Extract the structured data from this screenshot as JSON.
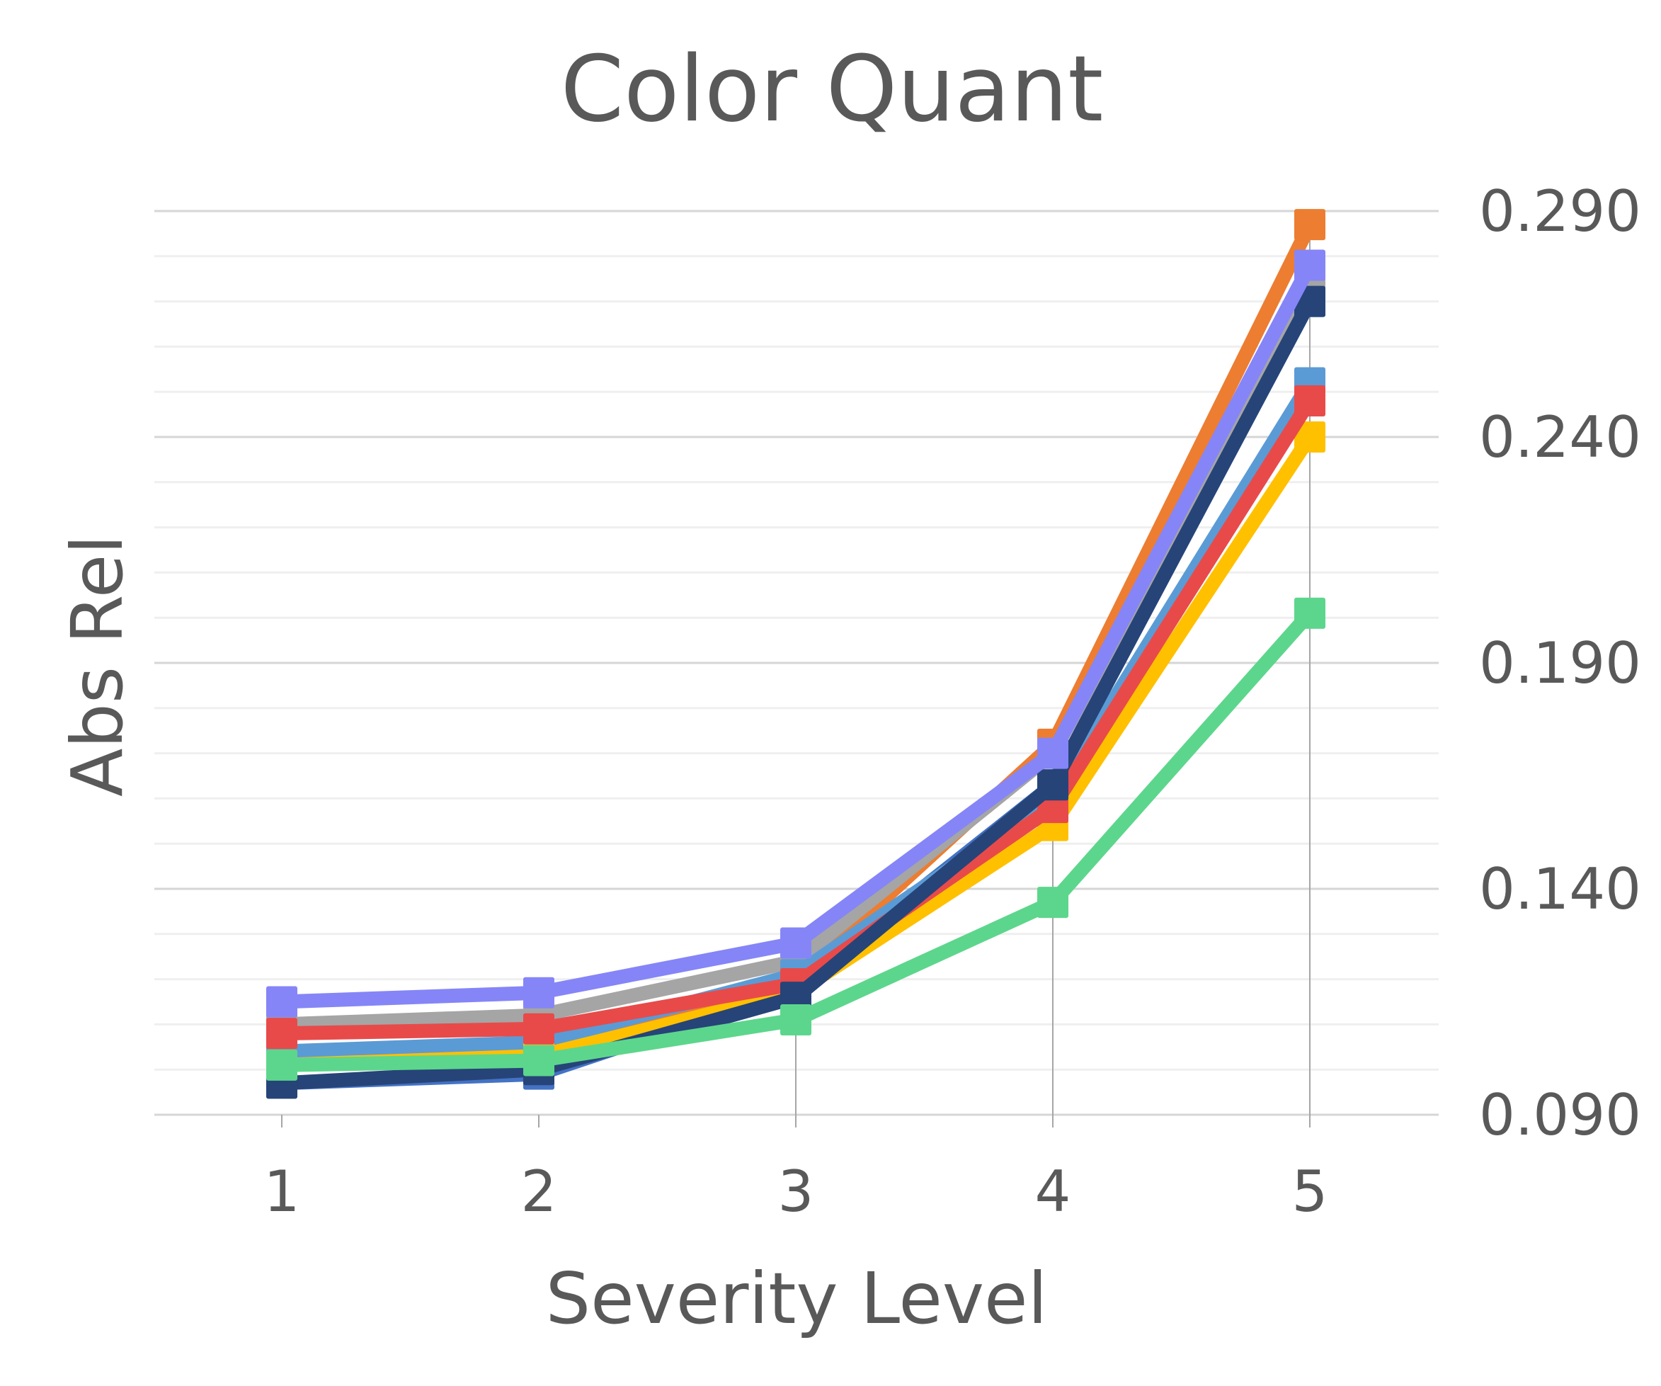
{
  "chart_data": {
    "type": "line",
    "title": "Color Quant",
    "xlabel": "Severity Level",
    "ylabel": "Abs Rel",
    "categories": [
      "1",
      "2",
      "3",
      "4",
      "5"
    ],
    "yticks": [
      "0.090",
      "0.140",
      "0.190",
      "0.240",
      "0.290"
    ],
    "ylim": [
      0.09,
      0.29
    ],
    "y_minor_step": 0.01,
    "y_axis_side": "right",
    "grid": true,
    "legend": "none",
    "series": [
      {
        "color": "#ed7d31",
        "values": [
          0.103,
          0.106,
          0.12,
          0.172,
          0.287
        ]
      },
      {
        "color": "#4472c4",
        "values": [
          0.097,
          0.099,
          0.118,
          0.163,
          0.27
        ]
      },
      {
        "color": "#a5a5a5",
        "values": [
          0.11,
          0.112,
          0.124,
          0.17,
          0.273
        ]
      },
      {
        "color": "#5b9bd5",
        "values": [
          0.104,
          0.106,
          0.121,
          0.16,
          0.252
        ]
      },
      {
        "color": "#ffc000",
        "values": [
          0.101,
          0.103,
          0.117,
          0.154,
          0.24
        ]
      },
      {
        "color": "#e84a4a",
        "values": [
          0.108,
          0.109,
          0.119,
          0.158,
          0.248
        ]
      },
      {
        "color": "#264478",
        "values": [
          0.097,
          0.1,
          0.116,
          0.163,
          0.27
        ]
      },
      {
        "color": "#5cd68c",
        "values": [
          0.101,
          0.102,
          0.111,
          0.137,
          0.201
        ]
      },
      {
        "color": "#8585f8",
        "values": [
          0.115,
          0.117,
          0.128,
          0.17,
          0.278
        ]
      }
    ]
  }
}
